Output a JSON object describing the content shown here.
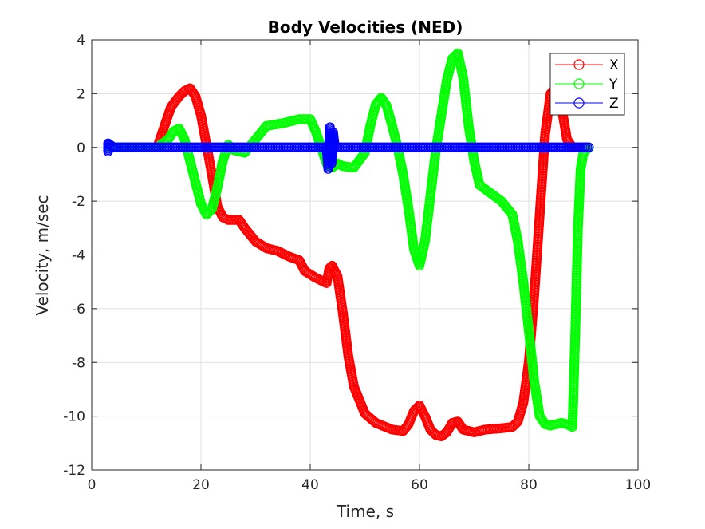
{
  "chart_data": {
    "type": "line",
    "title": "Body Velocities (NED)",
    "xlabel": "Time, s",
    "ylabel": "Velocity, m/sec",
    "xlim": [
      0,
      100
    ],
    "ylim": [
      -12,
      4
    ],
    "xticks": [
      0,
      20,
      40,
      60,
      80,
      100
    ],
    "yticks": [
      -12,
      -10,
      -8,
      -6,
      -4,
      -2,
      0,
      2,
      4
    ],
    "grid": true,
    "legend_position": "top-right",
    "marker": "circle",
    "series": [
      {
        "name": "X",
        "color": "#ff0000",
        "points": [
          [
            3,
            0
          ],
          [
            12,
            0
          ],
          [
            13,
            0.6
          ],
          [
            14.5,
            1.5
          ],
          [
            16,
            1.9
          ],
          [
            17,
            2.1
          ],
          [
            18,
            2.2
          ],
          [
            19,
            1.9
          ],
          [
            20,
            1.2
          ],
          [
            21,
            0.1
          ],
          [
            22,
            -1
          ],
          [
            23,
            -2.2
          ],
          [
            24,
            -2.6
          ],
          [
            25,
            -2.7
          ],
          [
            27,
            -2.7
          ],
          [
            28,
            -3
          ],
          [
            30,
            -3.5
          ],
          [
            32,
            -3.75
          ],
          [
            34,
            -3.85
          ],
          [
            36,
            -4.05
          ],
          [
            38,
            -4.2
          ],
          [
            39,
            -4.6
          ],
          [
            41,
            -4.85
          ],
          [
            43,
            -5.05
          ],
          [
            43.5,
            -4.5
          ],
          [
            44,
            -4.4
          ],
          [
            45,
            -4.8
          ],
          [
            46,
            -6.2
          ],
          [
            47,
            -7.8
          ],
          [
            48,
            -8.9
          ],
          [
            50,
            -9.9
          ],
          [
            52,
            -10.25
          ],
          [
            55,
            -10.5
          ],
          [
            57,
            -10.55
          ],
          [
            58,
            -10.3
          ],
          [
            59,
            -9.8
          ],
          [
            60,
            -9.6
          ],
          [
            61,
            -10
          ],
          [
            62,
            -10.5
          ],
          [
            63,
            -10.7
          ],
          [
            64,
            -10.75
          ],
          [
            65,
            -10.6
          ],
          [
            66,
            -10.25
          ],
          [
            67,
            -10.2
          ],
          [
            68,
            -10.5
          ],
          [
            70,
            -10.6
          ],
          [
            72,
            -10.5
          ],
          [
            75,
            -10.45
          ],
          [
            77,
            -10.4
          ],
          [
            78,
            -10.2
          ],
          [
            79,
            -9.5
          ],
          [
            80,
            -8
          ],
          [
            81,
            -5.5
          ],
          [
            82,
            -2.5
          ],
          [
            83,
            0.5
          ],
          [
            84,
            2
          ],
          [
            85,
            2.2
          ],
          [
            86,
            1.5
          ],
          [
            87,
            0.3
          ],
          [
            88,
            0
          ],
          [
            91,
            0
          ]
        ]
      },
      {
        "name": "Y",
        "color": "#00ff00",
        "points": [
          [
            3,
            0
          ],
          [
            12,
            0
          ],
          [
            14,
            0.3
          ],
          [
            15,
            0.6
          ],
          [
            16,
            0.7
          ],
          [
            17,
            0.3
          ],
          [
            18,
            -0.5
          ],
          [
            19,
            -1.3
          ],
          [
            20,
            -2.1
          ],
          [
            21,
            -2.5
          ],
          [
            22,
            -2.3
          ],
          [
            23,
            -1.5
          ],
          [
            24,
            -0.5
          ],
          [
            25,
            0.1
          ],
          [
            26,
            -0.1
          ],
          [
            28,
            -0.2
          ],
          [
            30,
            0.3
          ],
          [
            32,
            0.8
          ],
          [
            35,
            0.9
          ],
          [
            38,
            1.05
          ],
          [
            40,
            1.05
          ],
          [
            41,
            0.6
          ],
          [
            42,
            0
          ],
          [
            43,
            -0.6
          ],
          [
            44,
            -0.75
          ],
          [
            45,
            -0.6
          ],
          [
            46,
            -0.7
          ],
          [
            48,
            -0.75
          ],
          [
            50,
            -0.2
          ],
          [
            51,
            0.8
          ],
          [
            52,
            1.6
          ],
          [
            53,
            1.85
          ],
          [
            54,
            1.55
          ],
          [
            55,
            0.8
          ],
          [
            56,
            0
          ],
          [
            57,
            -1
          ],
          [
            58,
            -2.3
          ],
          [
            59,
            -3.8
          ],
          [
            60,
            -4.4
          ],
          [
            61,
            -3.5
          ],
          [
            62,
            -1.8
          ],
          [
            63,
            -0.1
          ],
          [
            64,
            1.2
          ],
          [
            65,
            2.5
          ],
          [
            66,
            3.3
          ],
          [
            67,
            3.5
          ],
          [
            68,
            2.6
          ],
          [
            69,
            0.8
          ],
          [
            70,
            -0.5
          ],
          [
            71,
            -1.4
          ],
          [
            73,
            -1.7
          ],
          [
            75,
            -2
          ],
          [
            77,
            -2.5
          ],
          [
            78,
            -3.5
          ],
          [
            79,
            -5
          ],
          [
            80,
            -6.8
          ],
          [
            81,
            -8.7
          ],
          [
            82,
            -10
          ],
          [
            83,
            -10.3
          ],
          [
            84,
            -10.35
          ],
          [
            86,
            -10.25
          ],
          [
            87,
            -10.3
          ],
          [
            88,
            -10.4
          ],
          [
            88.5,
            -7
          ],
          [
            89,
            -3
          ],
          [
            89.5,
            -0.8
          ],
          [
            90,
            -0.2
          ],
          [
            91,
            0
          ]
        ]
      },
      {
        "name": "Z",
        "color": "#0000ff",
        "points": [
          [
            3,
            -0.15
          ],
          [
            3,
            0.15
          ],
          [
            4,
            0
          ],
          [
            43,
            0
          ],
          [
            43.3,
            -0.8
          ],
          [
            43.6,
            0.75
          ],
          [
            43.9,
            -0.6
          ],
          [
            44.2,
            0.55
          ],
          [
            44.5,
            0
          ],
          [
            91,
            0
          ]
        ]
      }
    ]
  }
}
